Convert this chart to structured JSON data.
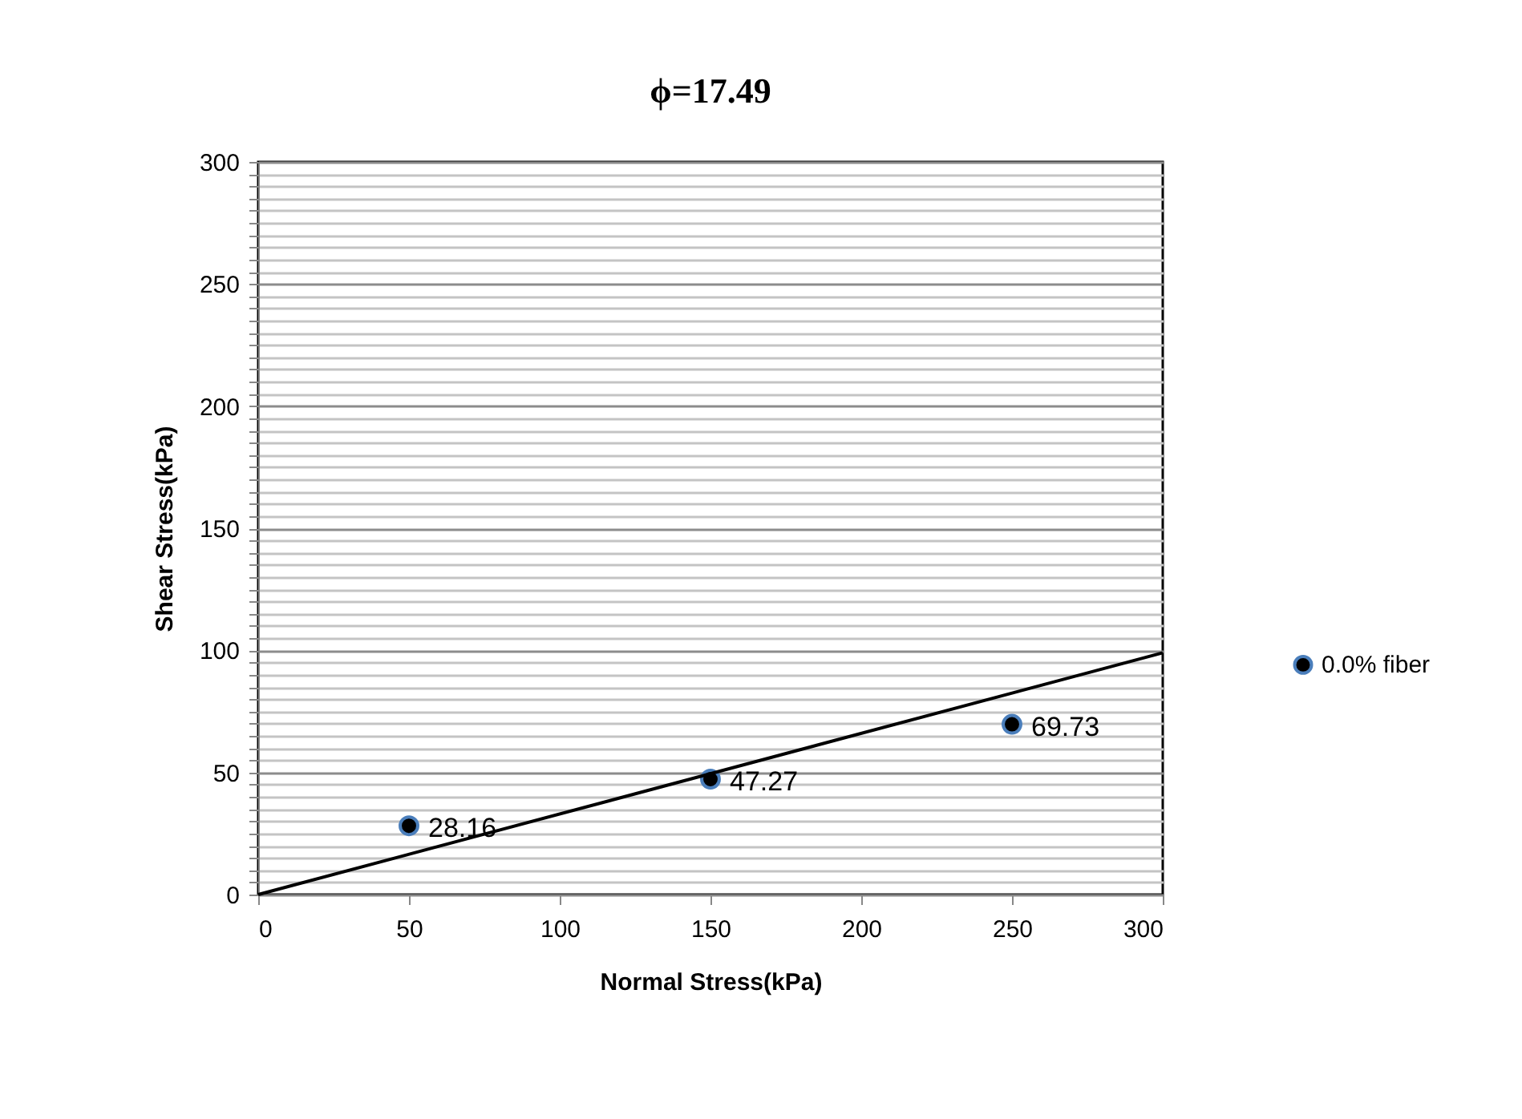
{
  "chart_data": {
    "type": "scatter",
    "title": "ϕ=17.49",
    "xlabel": "Normal Stress(kPa)",
    "ylabel": "Shear Stress(kPa)",
    "x": [
      50,
      150,
      250
    ],
    "series": [
      {
        "name": "0.0% fiber",
        "color": "#000000",
        "values": [
          28.16,
          47.27,
          69.73
        ],
        "value_labels": [
          "28.16",
          "47.27",
          "69.73"
        ]
      },
      {
        "type": "line",
        "color": "#000000",
        "x": [
          0,
          300
        ],
        "values": [
          0,
          99
        ],
        "marker": "none"
      }
    ],
    "marker": "circle",
    "line_style": "solid",
    "legend": "right",
    "grid": "y",
    "xlim": [
      0,
      300
    ],
    "xticks": [
      0,
      50,
      100,
      150,
      200,
      250,
      300
    ],
    "ylim": [
      0,
      300
    ],
    "yticks": [
      0,
      {
        "value": 5,
        "label": null
      },
      {
        "value": 10,
        "label": null
      },
      {
        "value": 15,
        "label": null
      },
      {
        "value": 20,
        "label": null
      },
      {
        "value": 25,
        "label": null
      },
      {
        "value": 30,
        "label": null
      },
      {
        "value": 35,
        "label": null
      },
      {
        "value": 40,
        "label": null
      },
      {
        "value": 45,
        "label": null
      },
      50,
      {
        "value": 55,
        "label": null
      },
      {
        "value": 60,
        "label": null
      },
      {
        "value": 65,
        "label": null
      },
      {
        "value": 70,
        "label": null
      },
      {
        "value": 75,
        "label": null
      },
      {
        "value": 80,
        "label": null
      },
      {
        "value": 85,
        "label": null
      },
      {
        "value": 90,
        "label": null
      },
      {
        "value": 95,
        "label": null
      },
      100,
      {
        "value": 105,
        "label": null
      },
      {
        "value": 110,
        "label": null
      },
      {
        "value": 115,
        "label": null
      },
      {
        "value": 120,
        "label": null
      },
      {
        "value": 125,
        "label": null
      },
      {
        "value": 130,
        "label": null
      },
      {
        "value": 135,
        "label": null
      },
      {
        "value": 140,
        "label": null
      },
      {
        "value": 145,
        "label": null
      },
      150,
      {
        "value": 155,
        "label": null
      },
      {
        "value": 160,
        "label": null
      },
      {
        "value": 165,
        "label": null
      },
      {
        "value": 170,
        "label": null
      },
      {
        "value": 175,
        "label": null
      },
      {
        "value": 180,
        "label": null
      },
      {
        "value": 185,
        "label": null
      },
      {
        "value": 190,
        "label": null
      },
      {
        "value": 195,
        "label": null
      },
      200,
      {
        "value": 205,
        "label": null
      },
      {
        "value": 210,
        "label": null
      },
      {
        "value": 215,
        "label": null
      },
      {
        "value": 220,
        "label": null
      },
      {
        "value": 225,
        "label": null
      },
      {
        "value": 230,
        "label": null
      },
      {
        "value": 235,
        "label": null
      },
      {
        "value": 240,
        "label": null
      },
      {
        "value": 245,
        "label": null
      },
      250,
      {
        "value": 255,
        "label": null
      },
      {
        "value": 260,
        "label": null
      },
      {
        "value": 265,
        "label": null
      },
      {
        "value": 270,
        "label": null
      },
      {
        "value": 275,
        "label": null
      },
      {
        "value": 280,
        "label": null
      },
      {
        "value": 285,
        "label": null
      },
      {
        "value": 290,
        "label": null
      },
      {
        "value": 295,
        "label": null
      },
      300
    ]
  }
}
